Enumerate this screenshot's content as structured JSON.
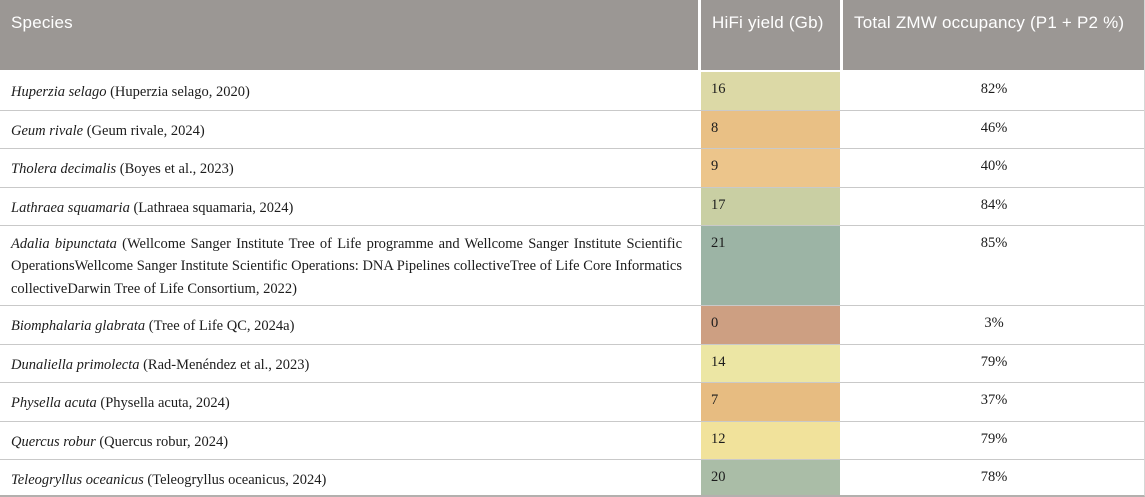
{
  "header": {
    "species": "Species",
    "hifi_yield": "HiFi yield (Gb)",
    "occupancy": "Total ZMW occupancy (P1 + P2 %)"
  },
  "colors": {
    "header_bg": "#9b9794",
    "row_border": "#c9c9c9",
    "text": "#1c1c1c"
  },
  "rows": [
    {
      "species": "Huperzia selago",
      "citation": "(Huperzia selago, 2020)",
      "yield": "16",
      "yield_color": "#dcd9a6",
      "occupancy": "82%"
    },
    {
      "species": "Geum rivale",
      "citation": "(Geum rivale, 2024)",
      "yield": "8",
      "yield_color": "#e9c085",
      "occupancy": "46%"
    },
    {
      "species": "Tholera decimalis",
      "citation": "(Boyes et al., 2023)",
      "yield": "9",
      "yield_color": "#ecc58b",
      "occupancy": "40%"
    },
    {
      "species": "Lathraea squamaria",
      "citation": "(Lathraea squamaria, 2024)",
      "yield": "17",
      "yield_color": "#c9cfa3",
      "occupancy": "84%"
    },
    {
      "species": "Adalia bipunctata",
      "citation": "(Wellcome Sanger Institute Tree of Life programme and Wellcome Sanger Institute Scientific OperationsWellcome Sanger Institute Scientific Operations: DNA Pipelines collectiveTree of Life Core Informatics collectiveDarwin Tree of Life Consortium, 2022)",
      "yield": "21",
      "yield_color": "#9cb4a5",
      "occupancy": "85%"
    },
    {
      "species": "Biomphalaria glabrata",
      "citation": "(Tree of Life QC, 2024a)",
      "yield": "0",
      "yield_color": "#cd9f82",
      "occupancy": "3%"
    },
    {
      "species": "Dunaliella primolecta",
      "citation": "(Rad-Menéndez et al., 2023)",
      "yield": "14",
      "yield_color": "#ece6a4",
      "occupancy": "79%"
    },
    {
      "species": "Physella acuta",
      "citation": "(Physella acuta, 2024)",
      "yield": "7",
      "yield_color": "#e7bc81",
      "occupancy": "37%"
    },
    {
      "species": "Quercus robur",
      "citation": "(Quercus robur, 2024)",
      "yield": "12",
      "yield_color": "#f1e29b",
      "occupancy": "79%"
    },
    {
      "species": "Teleogryllus oceanicus",
      "citation": "(Teleogryllus oceanicus, 2024)",
      "yield": "20",
      "yield_color": "#aabda7",
      "occupancy": "78%"
    }
  ]
}
